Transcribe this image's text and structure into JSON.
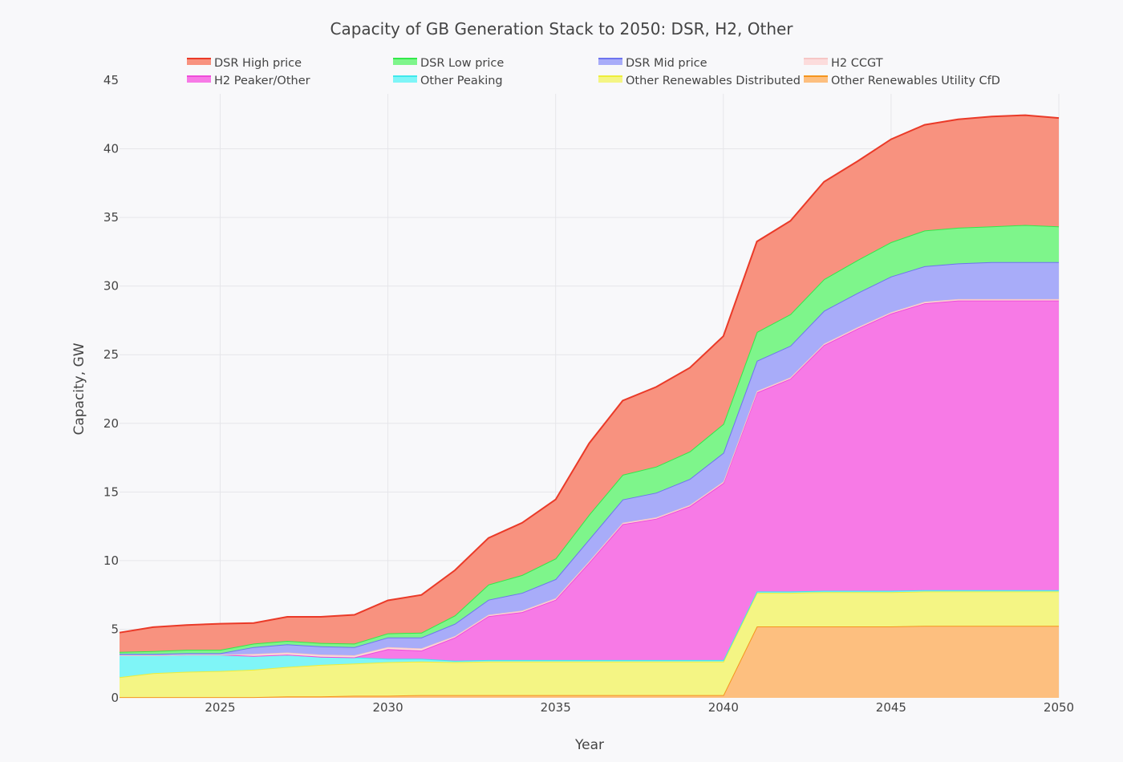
{
  "chart_data": {
    "type": "area",
    "title": "Capacity of GB Generation Stack to 2050: DSR, H2, Other",
    "xlabel": "Year",
    "ylabel": "Capacity, GW",
    "xlim": [
      2022,
      2050
    ],
    "ylim": [
      0,
      45
    ],
    "x_ticks": [
      2025,
      2030,
      2035,
      2040,
      2045,
      2050
    ],
    "y_ticks": [
      0,
      5,
      10,
      15,
      20,
      25,
      30,
      35,
      40,
      45
    ],
    "grid": true,
    "legend_position": "top",
    "x": [
      2022,
      2023,
      2024,
      2025,
      2026,
      2027,
      2028,
      2029,
      2030,
      2031,
      2032,
      2033,
      2034,
      2035,
      2036,
      2037,
      2038,
      2039,
      2040,
      2041,
      2042,
      2043,
      2044,
      2045,
      2046,
      2047,
      2048,
      2049,
      2050
    ],
    "stacking": "cumulative, bottom to top in listed order",
    "series": [
      {
        "name": "Other Renewables Utility CfD",
        "fill": "#fdbf7f",
        "line": "#f5951d",
        "values": [
          0.05,
          0.05,
          0.05,
          0.05,
          0.05,
          0.1,
          0.1,
          0.15,
          0.15,
          0.2,
          0.2,
          0.2,
          0.2,
          0.2,
          0.2,
          0.2,
          0.2,
          0.2,
          0.2,
          5.2,
          5.2,
          5.2,
          5.2,
          5.2,
          5.25,
          5.25,
          5.25,
          5.25,
          5.25
        ]
      },
      {
        "name": "Other Renewables Distributed",
        "fill": "#f4f584",
        "line": "#eded3a",
        "values": [
          1.45,
          1.75,
          1.85,
          1.9,
          2.0,
          2.15,
          2.3,
          2.35,
          2.45,
          2.45,
          2.4,
          2.45,
          2.45,
          2.45,
          2.45,
          2.45,
          2.45,
          2.45,
          2.45,
          2.45,
          2.45,
          2.5,
          2.5,
          2.5,
          2.5,
          2.5,
          2.5,
          2.5,
          2.5
        ]
      },
      {
        "name": "Other Peaking",
        "fill": "#7ff5f7",
        "line": "#3ee8ec",
        "values": [
          1.6,
          1.3,
          1.25,
          1.2,
          1.0,
          0.9,
          0.6,
          0.45,
          0.25,
          0.2,
          0.1,
          0.1,
          0.1,
          0.1,
          0.1,
          0.1,
          0.1,
          0.1,
          0.1,
          0.1,
          0.1,
          0.1,
          0.1,
          0.1,
          0.1,
          0.1,
          0.1,
          0.1,
          0.1
        ]
      },
      {
        "name": "H2 Peaker/Other",
        "fill": "#f77ae6",
        "line": "#ef4bd9",
        "values": [
          0,
          0,
          0,
          0,
          0,
          0,
          0,
          0,
          0.7,
          0.6,
          1.7,
          3.2,
          3.5,
          4.4,
          7.1,
          9.9,
          10.3,
          11.2,
          12.9,
          14.5,
          15.5,
          17.9,
          19.1,
          20.2,
          20.9,
          21.1,
          21.1,
          21.1,
          21.1
        ]
      },
      {
        "name": "H2 CCGT",
        "fill": "#fcdcdc",
        "line": "#f6c6c6",
        "values": [
          0,
          0,
          0,
          0,
          0.15,
          0.15,
          0.15,
          0.15,
          0.15,
          0.15,
          0.1,
          0.1,
          0.1,
          0.1,
          0.1,
          0.1,
          0.1,
          0.1,
          0.1,
          0.1,
          0.1,
          0.1,
          0.1,
          0.1,
          0.1,
          0.1,
          0.1,
          0.1,
          0.1
        ]
      },
      {
        "name": "DSR Mid price",
        "fill": "#a8acf9",
        "line": "#6d74ef",
        "values": [
          0.1,
          0.1,
          0.1,
          0.1,
          0.5,
          0.6,
          0.6,
          0.6,
          0.7,
          0.8,
          0.9,
          1.1,
          1.3,
          1.4,
          1.6,
          1.7,
          1.8,
          1.9,
          2.1,
          2.2,
          2.3,
          2.4,
          2.5,
          2.6,
          2.6,
          2.6,
          2.7,
          2.7,
          2.7
        ]
      },
      {
        "name": "DSR Low price",
        "fill": "#7ef58b",
        "line": "#33e84a",
        "values": [
          0.15,
          0.2,
          0.25,
          0.25,
          0.25,
          0.25,
          0.25,
          0.25,
          0.3,
          0.35,
          0.6,
          1.1,
          1.3,
          1.5,
          1.8,
          1.8,
          1.9,
          2.0,
          2.1,
          2.1,
          2.3,
          2.3,
          2.4,
          2.5,
          2.6,
          2.6,
          2.6,
          2.7,
          2.6
        ]
      },
      {
        "name": "DSR High price",
        "fill": "#f8927f",
        "line": "#ea3a28",
        "values": [
          1.4,
          1.75,
          1.8,
          1.9,
          1.5,
          1.75,
          1.9,
          2.1,
          2.4,
          2.75,
          3.3,
          3.4,
          3.8,
          4.3,
          5.2,
          5.4,
          5.8,
          6.1,
          6.4,
          6.6,
          6.8,
          7.1,
          7.2,
          7.5,
          7.7,
          7.9,
          8.0,
          8.0,
          7.9
        ]
      }
    ],
    "legend_order": [
      "DSR High price",
      "DSR Low price",
      "DSR Mid price",
      "H2 CCGT",
      "H2 Peaker/Other",
      "Other Peaking",
      "Other Renewables Distributed",
      "Other Renewables Utility CfD"
    ]
  }
}
